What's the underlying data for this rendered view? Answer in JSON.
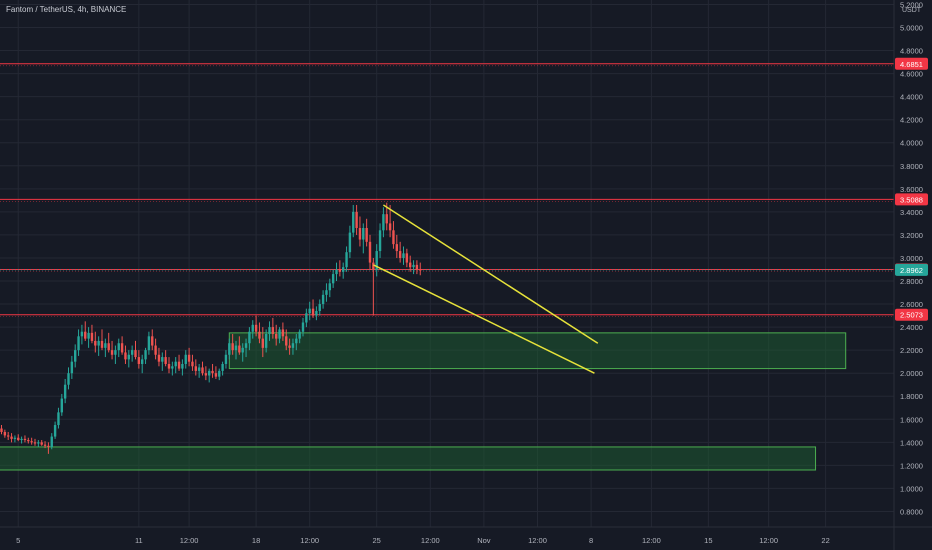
{
  "header": {
    "title": "Fantom / TetherUS, 4h, BINANCE",
    "currency": "USDT"
  },
  "colors": {
    "background": "#161a25",
    "grid": "#242834",
    "up": "#26a69a",
    "down": "#ef5350",
    "level_line": "#f23645",
    "trendline": "#e6e23a",
    "zone_fill": "#1e5a32",
    "zone_border": "#4caf50",
    "last_price_badge": "#26a69a"
  },
  "chart_data": {
    "type": "candlestick",
    "title": "Fantom / TetherUS, 4h, BINANCE",
    "y_unit": "USDT",
    "y_ticks": [
      "5.2000",
      "5.0000",
      "4.8000",
      "4.6000",
      "4.4000",
      "4.2000",
      "4.0000",
      "3.8000",
      "3.6000",
      "3.4000",
      "3.2000",
      "3.0000",
      "2.8000",
      "2.6000",
      "2.4000",
      "2.2000",
      "2.0000",
      "1.8000",
      "1.6000",
      "1.4000",
      "1.2000",
      "1.0000",
      "0.8000"
    ],
    "ylim": [
      0.7,
      5.23
    ],
    "x_ticks": [
      {
        "label": "5",
        "index": 5
      },
      {
        "label": "11",
        "index": 41
      },
      {
        "label": "12:00",
        "index": 56
      },
      {
        "label": "18",
        "index": 76
      },
      {
        "label": "12:00",
        "index": 92
      },
      {
        "label": "25",
        "index": 112
      },
      {
        "label": "12:00",
        "index": 128
      },
      {
        "label": "Nov",
        "index": 144
      },
      {
        "label": "12:00",
        "index": 160
      },
      {
        "label": "8",
        "index": 176
      },
      {
        "label": "12:00",
        "index": 194
      },
      {
        "label": "15",
        "index": 211
      },
      {
        "label": "12:00",
        "index": 229
      },
      {
        "label": "22",
        "index": 246
      }
    ],
    "horizontal_levels": [
      {
        "value": 4.6851,
        "label": "4.6851"
      },
      {
        "value": 3.5088,
        "label": "3.5088"
      },
      {
        "value": 2.9,
        "label": "2.9000"
      },
      {
        "value": 2.5073,
        "label": "2.5073"
      }
    ],
    "last_price": {
      "value": 2.8962,
      "label": "2.8962"
    },
    "zones": [
      {
        "x_start": 68,
        "x_end": 252,
        "y_low": 2.04,
        "y_high": 2.35
      },
      {
        "x_start": -4,
        "x_end": 243,
        "y_low": 1.16,
        "y_high": 1.36
      }
    ],
    "trendlines": [
      {
        "x1": 114,
        "y1": 3.46,
        "x2": 178,
        "y2": 2.26
      },
      {
        "x1": 111,
        "y1": 2.94,
        "x2": 177,
        "y2": 2.0
      }
    ],
    "candles": [
      [
        1.52,
        1.55,
        1.47,
        1.49
      ],
      [
        1.49,
        1.51,
        1.44,
        1.46
      ],
      [
        1.46,
        1.49,
        1.42,
        1.45
      ],
      [
        1.45,
        1.48,
        1.4,
        1.43
      ],
      [
        1.43,
        1.46,
        1.4,
        1.44
      ],
      [
        1.44,
        1.47,
        1.41,
        1.42
      ],
      [
        1.42,
        1.45,
        1.39,
        1.43
      ],
      [
        1.43,
        1.46,
        1.4,
        1.42
      ],
      [
        1.42,
        1.44,
        1.39,
        1.41
      ],
      [
        1.41,
        1.44,
        1.38,
        1.4
      ],
      [
        1.4,
        1.43,
        1.37,
        1.39
      ],
      [
        1.39,
        1.42,
        1.36,
        1.4
      ],
      [
        1.4,
        1.42,
        1.37,
        1.38
      ],
      [
        1.38,
        1.41,
        1.35,
        1.37
      ],
      [
        1.37,
        1.4,
        1.3,
        1.36
      ],
      [
        1.36,
        1.48,
        1.34,
        1.45
      ],
      [
        1.45,
        1.58,
        1.43,
        1.55
      ],
      [
        1.55,
        1.7,
        1.52,
        1.66
      ],
      [
        1.66,
        1.82,
        1.63,
        1.78
      ],
      [
        1.78,
        1.95,
        1.74,
        1.9
      ],
      [
        1.9,
        2.05,
        1.86,
        2.0
      ],
      [
        2.0,
        2.15,
        1.95,
        2.1
      ],
      [
        2.1,
        2.25,
        2.05,
        2.2
      ],
      [
        2.2,
        2.38,
        2.15,
        2.32
      ],
      [
        2.32,
        2.42,
        2.25,
        2.36
      ],
      [
        2.36,
        2.45,
        2.28,
        2.3
      ],
      [
        2.3,
        2.4,
        2.22,
        2.35
      ],
      [
        2.35,
        2.42,
        2.26,
        2.28
      ],
      [
        2.28,
        2.36,
        2.18,
        2.24
      ],
      [
        2.24,
        2.32,
        2.15,
        2.28
      ],
      [
        2.28,
        2.38,
        2.2,
        2.22
      ],
      [
        2.22,
        2.3,
        2.14,
        2.26
      ],
      [
        2.26,
        2.35,
        2.18,
        2.2
      ],
      [
        2.2,
        2.28,
        2.12,
        2.16
      ],
      [
        2.16,
        2.24,
        2.08,
        2.2
      ],
      [
        2.2,
        2.3,
        2.14,
        2.26
      ],
      [
        2.26,
        2.32,
        2.16,
        2.18
      ],
      [
        2.18,
        2.24,
        2.08,
        2.12
      ],
      [
        2.12,
        2.2,
        2.05,
        2.16
      ],
      [
        2.16,
        2.24,
        2.1,
        2.2
      ],
      [
        2.2,
        2.28,
        2.12,
        2.14
      ],
      [
        2.14,
        2.2,
        2.04,
        2.08
      ],
      [
        2.08,
        2.16,
        2.0,
        2.12
      ],
      [
        2.12,
        2.22,
        2.08,
        2.2
      ],
      [
        2.2,
        2.36,
        2.16,
        2.32
      ],
      [
        2.32,
        2.38,
        2.2,
        2.24
      ],
      [
        2.24,
        2.3,
        2.12,
        2.16
      ],
      [
        2.16,
        2.22,
        2.06,
        2.1
      ],
      [
        2.1,
        2.18,
        2.02,
        2.14
      ],
      [
        2.14,
        2.2,
        2.06,
        2.08
      ],
      [
        2.08,
        2.14,
        2.0,
        2.04
      ],
      [
        2.04,
        2.1,
        1.98,
        2.06
      ],
      [
        2.06,
        2.14,
        2.0,
        2.1
      ],
      [
        2.1,
        2.16,
        2.02,
        2.04
      ],
      [
        2.04,
        2.12,
        1.98,
        2.08
      ],
      [
        2.08,
        2.2,
        2.04,
        2.16
      ],
      [
        2.16,
        2.22,
        2.06,
        2.1
      ],
      [
        2.1,
        2.16,
        2.02,
        2.06
      ],
      [
        2.06,
        2.12,
        1.98,
        2.02
      ],
      [
        2.02,
        2.08,
        1.96,
        2.05
      ],
      [
        2.05,
        2.1,
        1.98,
        2.0
      ],
      [
        2.0,
        2.06,
        1.94,
        1.98
      ],
      [
        1.98,
        2.04,
        1.92,
        2.02
      ],
      [
        2.02,
        2.08,
        1.96,
        2.0
      ],
      [
        2.0,
        2.06,
        1.95,
        1.97
      ],
      [
        1.97,
        2.04,
        1.94,
        2.02
      ],
      [
        2.02,
        2.1,
        1.98,
        2.08
      ],
      [
        2.08,
        2.2,
        2.04,
        2.16
      ],
      [
        2.16,
        2.3,
        2.12,
        2.26
      ],
      [
        2.26,
        2.34,
        2.16,
        2.2
      ],
      [
        2.2,
        2.28,
        2.12,
        2.24
      ],
      [
        2.24,
        2.32,
        2.16,
        2.18
      ],
      [
        2.18,
        2.26,
        2.1,
        2.22
      ],
      [
        2.22,
        2.3,
        2.14,
        2.26
      ],
      [
        2.26,
        2.4,
        2.2,
        2.36
      ],
      [
        2.36,
        2.46,
        2.3,
        2.42
      ],
      [
        2.42,
        2.5,
        2.32,
        2.36
      ],
      [
        2.36,
        2.44,
        2.26,
        2.3
      ],
      [
        2.3,
        2.4,
        2.14,
        2.22
      ],
      [
        2.22,
        2.38,
        2.18,
        2.34
      ],
      [
        2.34,
        2.45,
        2.28,
        2.4
      ],
      [
        2.4,
        2.48,
        2.3,
        2.34
      ],
      [
        2.34,
        2.42,
        2.24,
        2.3
      ],
      [
        2.3,
        2.4,
        2.26,
        2.38
      ],
      [
        2.38,
        2.44,
        2.28,
        2.32
      ],
      [
        2.32,
        2.38,
        2.2,
        2.24
      ],
      [
        2.24,
        2.3,
        2.16,
        2.22
      ],
      [
        2.22,
        2.3,
        2.16,
        2.26
      ],
      [
        2.26,
        2.34,
        2.2,
        2.3
      ],
      [
        2.3,
        2.38,
        2.26,
        2.36
      ],
      [
        2.36,
        2.48,
        2.32,
        2.44
      ],
      [
        2.44,
        2.56,
        2.4,
        2.52
      ],
      [
        2.52,
        2.62,
        2.46,
        2.56
      ],
      [
        2.56,
        2.64,
        2.48,
        2.5
      ],
      [
        2.5,
        2.58,
        2.46,
        2.54
      ],
      [
        2.54,
        2.64,
        2.5,
        2.6
      ],
      [
        2.6,
        2.72,
        2.56,
        2.68
      ],
      [
        2.68,
        2.78,
        2.62,
        2.72
      ],
      [
        2.72,
        2.82,
        2.66,
        2.78
      ],
      [
        2.78,
        2.9,
        2.74,
        2.86
      ],
      [
        2.86,
        2.96,
        2.8,
        2.9
      ],
      [
        2.9,
        2.98,
        2.84,
        2.88
      ],
      [
        2.88,
        2.96,
        2.82,
        2.92
      ],
      [
        2.92,
        3.1,
        2.88,
        3.05
      ],
      [
        3.05,
        3.28,
        3.0,
        3.22
      ],
      [
        3.22,
        3.46,
        3.18,
        3.4
      ],
      [
        3.4,
        3.46,
        3.2,
        3.26
      ],
      [
        3.26,
        3.36,
        3.1,
        3.16
      ],
      [
        3.16,
        3.3,
        3.04,
        3.26
      ],
      [
        3.26,
        3.34,
        3.1,
        3.14
      ],
      [
        3.14,
        3.2,
        2.9,
        2.96
      ],
      [
        2.96,
        3.0,
        2.5,
        2.9
      ],
      [
        2.9,
        3.12,
        2.84,
        3.06
      ],
      [
        3.06,
        3.3,
        3.0,
        3.24
      ],
      [
        3.24,
        3.44,
        3.18,
        3.38
      ],
      [
        3.38,
        3.48,
        3.24,
        3.3
      ],
      [
        3.3,
        3.46,
        3.18,
        3.24
      ],
      [
        3.24,
        3.32,
        3.08,
        3.12
      ],
      [
        3.12,
        3.2,
        3.0,
        3.06
      ],
      [
        3.06,
        3.14,
        2.96,
        3.0
      ],
      [
        3.0,
        3.1,
        2.94,
        3.04
      ],
      [
        3.04,
        3.08,
        2.92,
        2.96
      ],
      [
        2.96,
        3.02,
        2.88,
        2.92
      ],
      [
        2.92,
        2.98,
        2.86,
        2.94
      ],
      [
        2.94,
        2.98,
        2.86,
        2.9
      ],
      [
        2.9,
        2.96,
        2.85,
        2.8962
      ]
    ]
  }
}
